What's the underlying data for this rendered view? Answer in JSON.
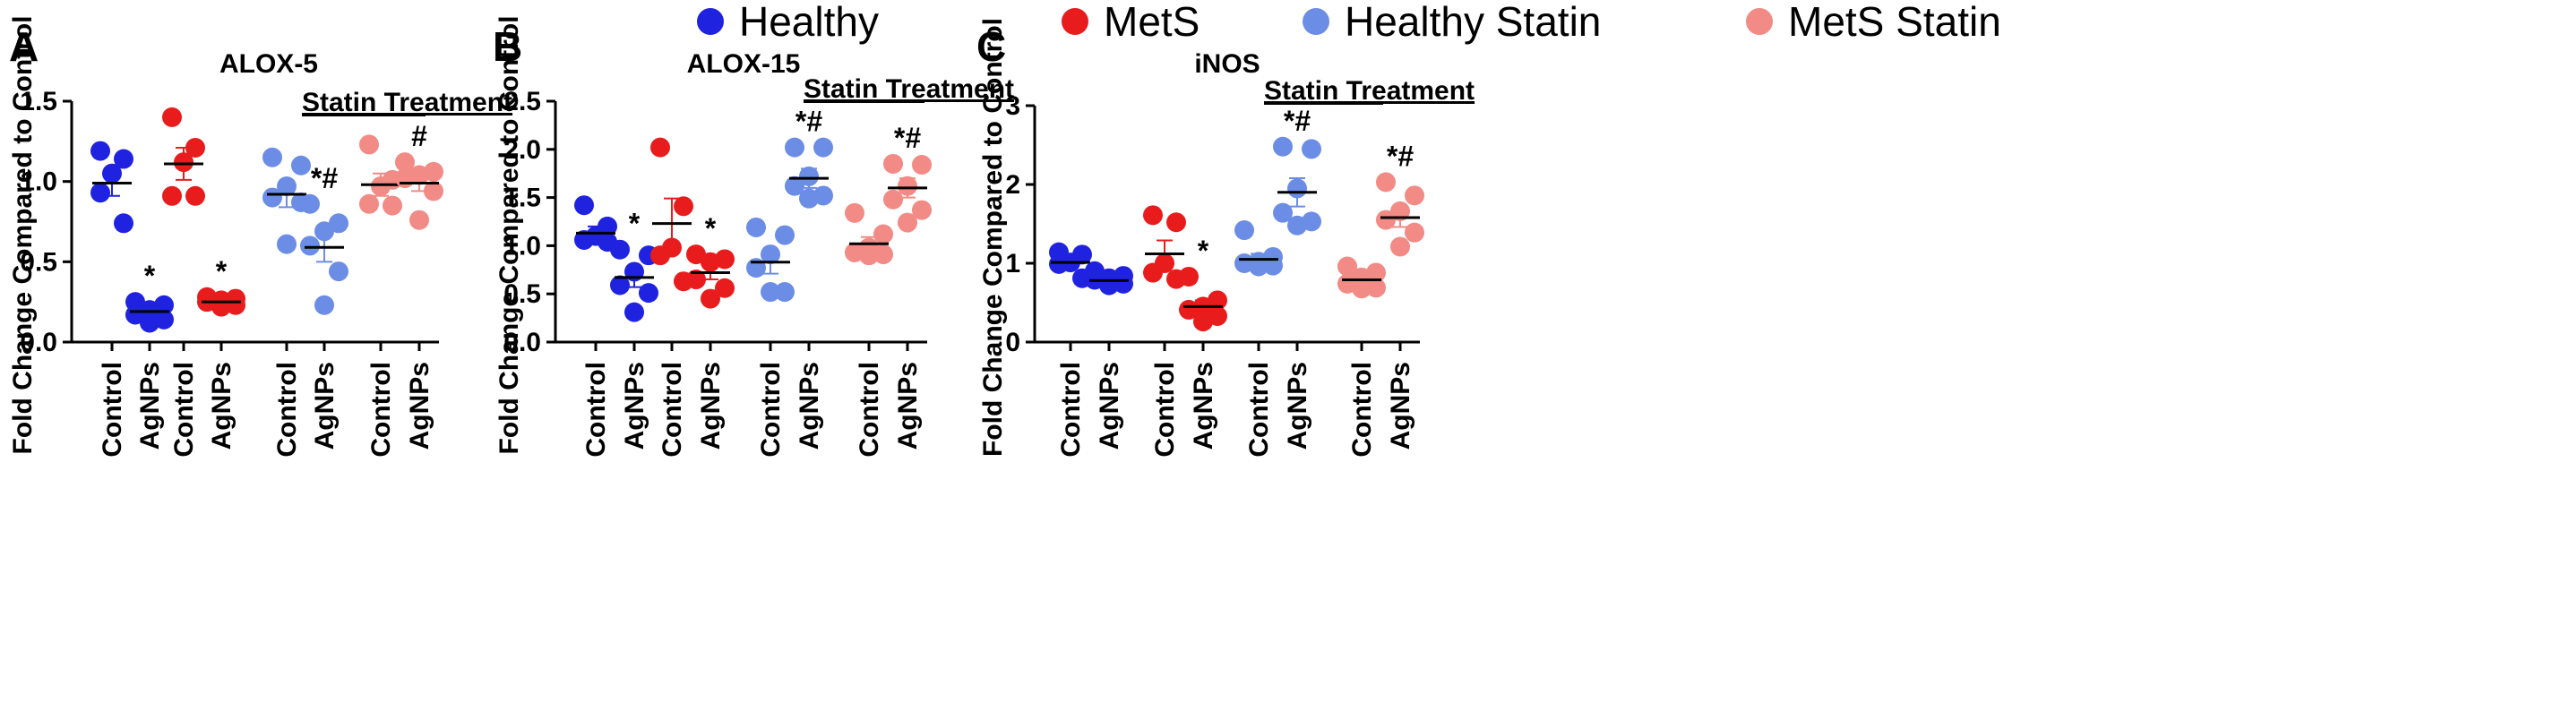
{
  "legend": [
    {
      "label": "Healthy",
      "color": "#1f23e0"
    },
    {
      "label": "MetS",
      "color": "#e81c1c"
    },
    {
      "label": "Healthy Statin",
      "color": "#6c8de6"
    },
    {
      "label": "MetS Statin",
      "color": "#f28a85"
    }
  ],
  "chart_data": [
    {
      "type": "scatter",
      "panel": "A",
      "title": "ALOX-5",
      "ylabel": "Fold Change Compared to Control",
      "ylim": [
        0,
        1.5
      ],
      "yticks": [
        0.0,
        0.5,
        1.0,
        1.5
      ],
      "ytick_labels": [
        "0.0",
        "0.5",
        "1.0",
        "1.5"
      ],
      "statin_label": "Statin Treatment",
      "groups": [
        {
          "label": "Control",
          "series": "Healthy",
          "color": "#1f23e0",
          "points": [
            1.19,
            1.14,
            1.05,
            0.93,
            0.74
          ],
          "mean": 0.99,
          "sem": 0.08,
          "annotation": ""
        },
        {
          "label": "AgNPs",
          "series": "Healthy",
          "color": "#1f23e0",
          "points": [
            0.25,
            0.23,
            0.2,
            0.17,
            0.14,
            0.12
          ],
          "mean": 0.19,
          "sem": 0.02,
          "annotation": "*"
        },
        {
          "label": "Control",
          "series": "MetS",
          "color": "#e81c1c",
          "points": [
            1.4,
            1.21,
            1.12,
            0.91,
            0.91
          ],
          "mean": 1.11,
          "sem": 0.1,
          "annotation": ""
        },
        {
          "label": "AgNPs",
          "series": "MetS",
          "color": "#e81c1c",
          "points": [
            0.28,
            0.27,
            0.26,
            0.25,
            0.23,
            0.22
          ],
          "mean": 0.25,
          "sem": 0.01,
          "annotation": "*"
        },
        {
          "label": "Control",
          "series": "Healthy Statin",
          "color": "#6c8de6",
          "points": [
            1.15,
            1.1,
            0.97,
            0.9,
            0.87,
            0.61
          ],
          "mean": 0.92,
          "sem": 0.08,
          "annotation": ""
        },
        {
          "label": "AgNPs",
          "series": "Healthy Statin",
          "color": "#6c8de6",
          "points": [
            0.86,
            0.74,
            0.69,
            0.6,
            0.44,
            0.23
          ],
          "mean": 0.59,
          "sem": 0.09,
          "annotation": "*#"
        },
        {
          "label": "Control",
          "series": "MetS Statin",
          "color": "#f28a85",
          "points": [
            1.23,
            1.01,
            0.97,
            0.86,
            0.85
          ],
          "mean": 0.98,
          "sem": 0.07,
          "annotation": ""
        },
        {
          "label": "AgNPs",
          "series": "MetS Statin",
          "color": "#f28a85",
          "points": [
            1.12,
            1.06,
            1.04,
            1.02,
            0.94,
            0.76
          ],
          "mean": 0.99,
          "sem": 0.05,
          "annotation": "#"
        }
      ]
    },
    {
      "type": "scatter",
      "panel": "B",
      "title": "ALOX-15",
      "ylabel": "Fold Change Compared to Control",
      "ylim": [
        0,
        2.5
      ],
      "yticks": [
        0.0,
        0.5,
        1.0,
        1.5,
        2.0,
        2.5
      ],
      "ytick_labels": [
        "0.0",
        "0.5",
        "1.0",
        "1.5",
        "2.0",
        "2.5"
      ],
      "statin_label": "Statin Treatment",
      "groups": [
        {
          "label": "Control",
          "series": "Healthy",
          "color": "#1f23e0",
          "points": [
            1.42,
            1.2,
            1.1,
            1.06,
            1.04
          ],
          "mean": 1.13,
          "sem": 0.07,
          "annotation": ""
        },
        {
          "label": "AgNPs",
          "series": "Healthy",
          "color": "#1f23e0",
          "points": [
            0.96,
            0.9,
            0.73,
            0.59,
            0.51,
            0.31
          ],
          "mean": 0.67,
          "sem": 0.1,
          "annotation": "*"
        },
        {
          "label": "Control",
          "series": "MetS",
          "color": "#e81c1c",
          "points": [
            2.02,
            1.41,
            0.98,
            0.9,
            0.63
          ],
          "mean": 1.23,
          "sem": 0.26,
          "annotation": ""
        },
        {
          "label": "AgNPs",
          "series": "MetS",
          "color": "#e81c1c",
          "points": [
            0.91,
            0.86,
            0.83,
            0.65,
            0.56,
            0.45
          ],
          "mean": 0.72,
          "sem": 0.07,
          "annotation": "*"
        },
        {
          "label": "Control",
          "series": "Healthy Statin",
          "color": "#6c8de6",
          "points": [
            1.19,
            1.11,
            0.91,
            0.77,
            0.52,
            0.52
          ],
          "mean": 0.83,
          "sem": 0.12,
          "annotation": ""
        },
        {
          "label": "AgNPs",
          "series": "Healthy Statin",
          "color": "#6c8de6",
          "points": [
            2.02,
            2.02,
            1.72,
            1.62,
            1.52,
            1.49
          ],
          "mean": 1.7,
          "sem": 0.1,
          "annotation": "*#"
        },
        {
          "label": "Control",
          "series": "MetS Statin",
          "color": "#f28a85",
          "points": [
            1.34,
            1.12,
            0.98,
            0.93,
            0.91,
            0.9
          ],
          "mean": 1.02,
          "sem": 0.07,
          "annotation": ""
        },
        {
          "label": "AgNPs",
          "series": "MetS Statin",
          "color": "#f28a85",
          "points": [
            1.85,
            1.84,
            1.62,
            1.48,
            1.37,
            1.24
          ],
          "mean": 1.6,
          "sem": 0.1,
          "annotation": "*#"
        }
      ]
    },
    {
      "type": "scatter",
      "panel": "C",
      "title": "iNOS",
      "ylabel": "Fold Change Compared to Control",
      "ylim": [
        0,
        3
      ],
      "yticks": [
        0,
        1,
        2,
        3
      ],
      "ytick_labels": [
        "0",
        "1",
        "2",
        "3"
      ],
      "statin_label": "Statin Treatment",
      "groups": [
        {
          "label": "Control",
          "series": "Healthy",
          "color": "#1f23e0",
          "points": [
            1.14,
            1.11,
            1.01,
            0.99,
            0.81
          ],
          "mean": 1.01,
          "sem": 0.06,
          "annotation": ""
        },
        {
          "label": "AgNPs",
          "series": "Healthy",
          "color": "#1f23e0",
          "points": [
            0.9,
            0.84,
            0.81,
            0.79,
            0.74,
            0.72
          ],
          "mean": 0.78,
          "sem": 0.03,
          "annotation": ""
        },
        {
          "label": "Control",
          "series": "MetS",
          "color": "#e81c1c",
          "points": [
            1.61,
            1.52,
            1.0,
            0.88,
            0.8
          ],
          "mean": 1.12,
          "sem": 0.17,
          "annotation": ""
        },
        {
          "label": "AgNPs",
          "series": "MetS",
          "color": "#e81c1c",
          "points": [
            0.83,
            0.53,
            0.45,
            0.41,
            0.33,
            0.26
          ],
          "mean": 0.45,
          "sem": 0.08,
          "annotation": "*"
        },
        {
          "label": "Control",
          "series": "Healthy Statin",
          "color": "#6c8de6",
          "points": [
            1.42,
            1.08,
            1.02,
            1.0,
            0.97,
            0.96
          ],
          "mean": 1.05,
          "sem": 0.07,
          "annotation": ""
        },
        {
          "label": "AgNPs",
          "series": "Healthy Statin",
          "color": "#6c8de6",
          "points": [
            2.48,
            2.45,
            1.95,
            1.64,
            1.53,
            1.48
          ],
          "mean": 1.9,
          "sem": 0.18,
          "annotation": "*#"
        },
        {
          "label": "Control",
          "series": "MetS Statin",
          "color": "#f28a85",
          "points": [
            0.96,
            0.88,
            0.82,
            0.74,
            0.69,
            0.68
          ],
          "mean": 0.79,
          "sem": 0.05,
          "annotation": ""
        },
        {
          "label": "AgNPs",
          "series": "MetS Statin",
          "color": "#f28a85",
          "points": [
            2.03,
            1.86,
            1.66,
            1.55,
            1.39,
            1.21
          ],
          "mean": 1.58,
          "sem": 0.12,
          "annotation": "*#"
        }
      ]
    }
  ]
}
